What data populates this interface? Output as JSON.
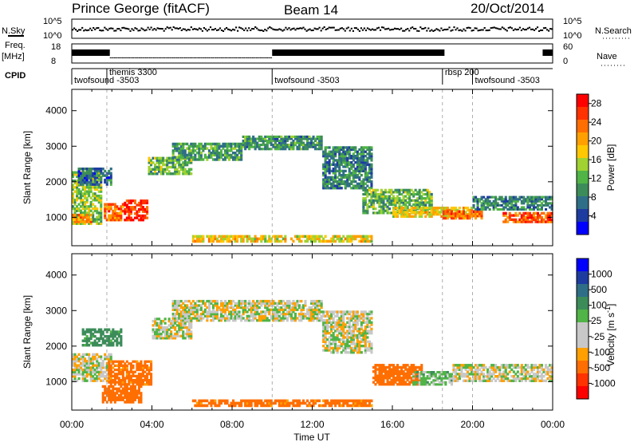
{
  "header": {
    "station": "Prince George (fitACF)",
    "beam": "Beam 14",
    "date": "20/Oct/2014"
  },
  "strips": {
    "nsky_label": "N.Sky",
    "nsky_ticks": [
      "10^5",
      "10^0"
    ],
    "nsearch_label": "N.Search",
    "nsearch_ticks": [
      "10^5",
      "10^0"
    ],
    "freq_label": "Freq.",
    "freq_unit": "[MHz]",
    "freq_ticks": [
      "18",
      "8"
    ],
    "nave_label": "Nave",
    "nave_ticks": [
      "60",
      "0"
    ],
    "cpid_label": "CPID",
    "cpid_segments": [
      {
        "name": "twofsound -3503",
        "start_hour": 0.0,
        "end_hour": 1.75
      },
      {
        "name": "themis 3300",
        "start_hour": 1.75,
        "end_hour": 10.0
      },
      {
        "name": "twofsound -3503",
        "start_hour": 10.0,
        "end_hour": 18.5
      },
      {
        "name": "rbsp 200",
        "start_hour": 18.5,
        "end_hour": 20.0
      },
      {
        "name": "twofsound -3503",
        "start_hour": 20.0,
        "end_hour": 24.0
      }
    ]
  },
  "time_axis": {
    "label": "Time UT",
    "ticks": [
      "00:00",
      "04:00",
      "08:00",
      "12:00",
      "16:00",
      "20:00",
      "00:00"
    ],
    "tick_hours": [
      0,
      4,
      8,
      12,
      16,
      20,
      24
    ]
  },
  "colors": {
    "power_scale": [
      "#0000ff",
      "#1e3ca0",
      "#2f6e87",
      "#3c8c5a",
      "#50b446",
      "#a0d232",
      "#ffc800",
      "#ffa000",
      "#ff6e00",
      "#ff3200",
      "#ff0000"
    ],
    "velocity_scale": [
      "#0000ff",
      "#1e3ca0",
      "#2f6e87",
      "#3c8c5a",
      "#50b446",
      "#c8c8c8",
      "#c8c8c8",
      "#ffa000",
      "#ff6e00",
      "#ff3200",
      "#ff0000"
    ]
  },
  "chart_data": [
    {
      "type": "heatmap",
      "name": "power",
      "ylabel": "Slant Range [km]",
      "xlabel": "",
      "xlim": [
        0,
        24
      ],
      "ylim": [
        200,
        4600
      ],
      "yticks": [
        1000,
        2000,
        3000,
        4000
      ],
      "colorbar": {
        "label": "Power [dB]",
        "ticks": [
          4,
          8,
          12,
          16,
          20,
          24,
          28
        ],
        "range": [
          0,
          30
        ]
      },
      "regions": [
        {
          "t": [
            0.0,
            1.5
          ],
          "r": [
            800,
            2300
          ],
          "v": 14
        },
        {
          "t": [
            0.0,
            1.0
          ],
          "r": [
            850,
            1100
          ],
          "v": 22
        },
        {
          "t": [
            1.6,
            2.6
          ],
          "r": [
            900,
            1400
          ],
          "v": 24
        },
        {
          "t": [
            2.6,
            3.8
          ],
          "r": [
            900,
            1500
          ],
          "v": 28
        },
        {
          "t": [
            0.3,
            2.0
          ],
          "r": [
            1900,
            2400
          ],
          "v": 6
        },
        {
          "t": [
            3.8,
            6.0
          ],
          "r": [
            2200,
            2700
          ],
          "v": 12
        },
        {
          "t": [
            5.0,
            8.5
          ],
          "r": [
            2600,
            3100
          ],
          "v": 10
        },
        {
          "t": [
            8.5,
            12.5
          ],
          "r": [
            2900,
            3300
          ],
          "v": 9
        },
        {
          "t": [
            12.5,
            15.0
          ],
          "r": [
            1800,
            3000
          ],
          "v": 8
        },
        {
          "t": [
            14.5,
            18.0
          ],
          "r": [
            1100,
            1800
          ],
          "v": 12
        },
        {
          "t": [
            16.0,
            20.0
          ],
          "r": [
            1000,
            1300
          ],
          "v": 18
        },
        {
          "t": [
            18.5,
            20.5
          ],
          "r": [
            950,
            1200
          ],
          "v": 24
        },
        {
          "t": [
            20.0,
            24.0
          ],
          "r": [
            1200,
            1600
          ],
          "v": 8
        },
        {
          "t": [
            21.5,
            24.0
          ],
          "r": [
            850,
            1150
          ],
          "v": 26
        },
        {
          "t": [
            6.0,
            15.0
          ],
          "r": [
            300,
            500
          ],
          "v": 18
        }
      ]
    },
    {
      "type": "heatmap",
      "name": "velocity",
      "ylabel": "Slant Range [km]",
      "xlabel": "Time UT",
      "xlim": [
        0,
        24
      ],
      "ylim": [
        200,
        4600
      ],
      "yticks": [
        1000,
        2000,
        3000,
        4000
      ],
      "colorbar": {
        "label": "Velocity [m s-1]",
        "ticks": [
          1000,
          500,
          100,
          25,
          -25,
          -100,
          -500,
          -1000
        ]
      },
      "regions": [
        {
          "t": [
            0.0,
            2.0
          ],
          "r": [
            1000,
            1800
          ],
          "v": 0
        },
        {
          "t": [
            0.5,
            2.5
          ],
          "r": [
            2000,
            2500
          ],
          "v": 150
        },
        {
          "t": [
            1.8,
            4.0
          ],
          "r": [
            900,
            1600
          ],
          "v": -150
        },
        {
          "t": [
            1.5,
            3.5
          ],
          "r": [
            400,
            900
          ],
          "v": -200
        },
        {
          "t": [
            4.0,
            6.0
          ],
          "r": [
            2200,
            2800
          ],
          "v": 0
        },
        {
          "t": [
            5.0,
            12.5
          ],
          "r": [
            2700,
            3300
          ],
          "v": 0
        },
        {
          "t": [
            12.5,
            15.0
          ],
          "r": [
            1800,
            3000
          ],
          "v": 0
        },
        {
          "t": [
            15.0,
            17.5
          ],
          "r": [
            900,
            1500
          ],
          "v": -200
        },
        {
          "t": [
            17.0,
            19.0
          ],
          "r": [
            900,
            1300
          ],
          "v": 50
        },
        {
          "t": [
            19.0,
            24.0
          ],
          "r": [
            1000,
            1500
          ],
          "v": 0
        },
        {
          "t": [
            6.0,
            15.0
          ],
          "r": [
            300,
            500
          ],
          "v": -150
        }
      ]
    }
  ]
}
